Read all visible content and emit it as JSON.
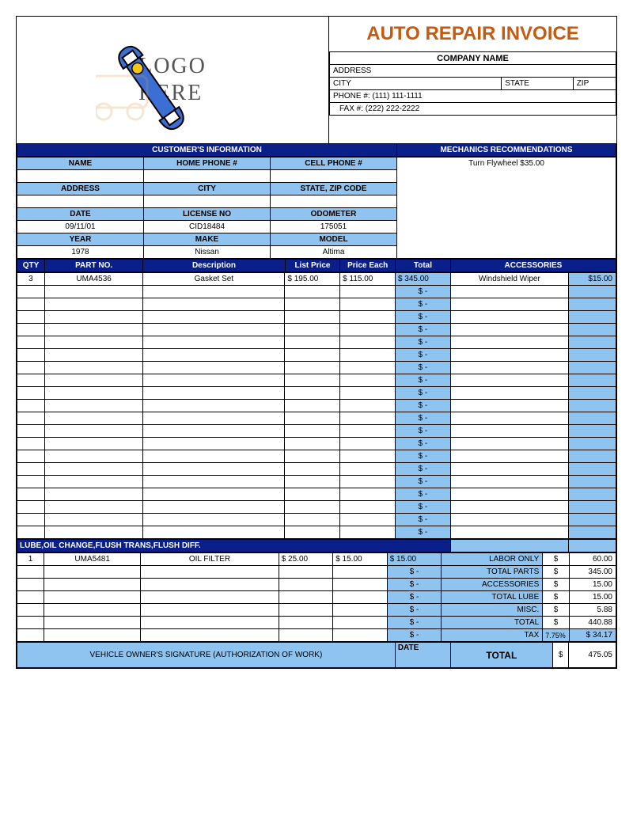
{
  "logo_text1": "LOGO",
  "logo_text2": "HERE",
  "title": "AUTO REPAIR INVOICE",
  "company": {
    "name": "COMPANY NAME",
    "address_label": "ADDRESS",
    "city_label": "CITY",
    "state_label": "STATE",
    "zip_label": "ZIP",
    "phone_label": "PHONE #:",
    "phone": "(111) 111-1111",
    "fax_label": "FAX #:",
    "fax": "(222) 222-2222"
  },
  "sections": {
    "customer_info": "CUSTOMER'S INFORMATION",
    "mechanics_rec": "MECHANICS RECOMMENDATIONS"
  },
  "cust_headers": {
    "name": "NAME",
    "home_phone": "HOME PHONE #",
    "cell_phone": "CELL PHONE #",
    "address": "ADDRESS",
    "city": "CITY",
    "state_zip": "STATE, ZIP CODE",
    "date": "DATE",
    "license": "LICENSE NO",
    "odometer": "ODOMETER",
    "year": "YEAR",
    "make": "MAKE",
    "model": "MODEL"
  },
  "cust_values": {
    "date": "09/11/01",
    "license": "CID18484",
    "odometer": "175051",
    "year": "1978",
    "make": "Nissan",
    "model": "Altima"
  },
  "mechanics_rec_text": "Turn Flywheel  $35.00",
  "parts_headers": {
    "qty": "QTY",
    "part_no": "PART NO.",
    "description": "Description",
    "list_price": "List Price",
    "price_each": "Price Each",
    "total": "Total",
    "accessories": "ACCESSORIES"
  },
  "parts_row": {
    "qty": "3",
    "part_no": "UMA4536",
    "description": "Gasket Set",
    "list_price": "$  195.00",
    "price_each": "$   115.00",
    "total": "$  345.00"
  },
  "accessory_row": {
    "name": "Windshield Wiper",
    "price": "$15.00"
  },
  "empty_dollar": "$       -",
  "lube_header": "LUBE,OIL CHANGE,FLUSH TRANS,FLUSH DIFF.",
  "lube_row": {
    "qty": "1",
    "part_no": "UMA5481",
    "description": "OIL FILTER",
    "list_price": "$    25.00",
    "price_each": "$     15.00",
    "total": "$   15.00"
  },
  "summary": {
    "labor_only": "LABOR ONLY",
    "labor_only_val": "60.00",
    "total_parts": "TOTAL PARTS",
    "total_parts_val": "345.00",
    "accessories": "ACCESSORIES",
    "accessories_val": "15.00",
    "total_lube": "TOTAL LUBE",
    "total_lube_val": "15.00",
    "misc": "MISC.",
    "misc_val": "5.88",
    "total": "TOTAL",
    "total_val": "440.88",
    "tax": "TAX",
    "tax_pct": "7.75%",
    "tax_val": "$ 34.17"
  },
  "signature": "VEHICLE OWNER'S SIGNATURE (AUTHORIZATION OF WORK)",
  "date_label": "DATE",
  "grand_total_label": "TOTAL",
  "grand_total_val": "475.05",
  "dollar": "$",
  "colors": {
    "darkblue": "#0b1f8a",
    "lightblue": "#8fc3f0",
    "title": "#c55a11"
  }
}
